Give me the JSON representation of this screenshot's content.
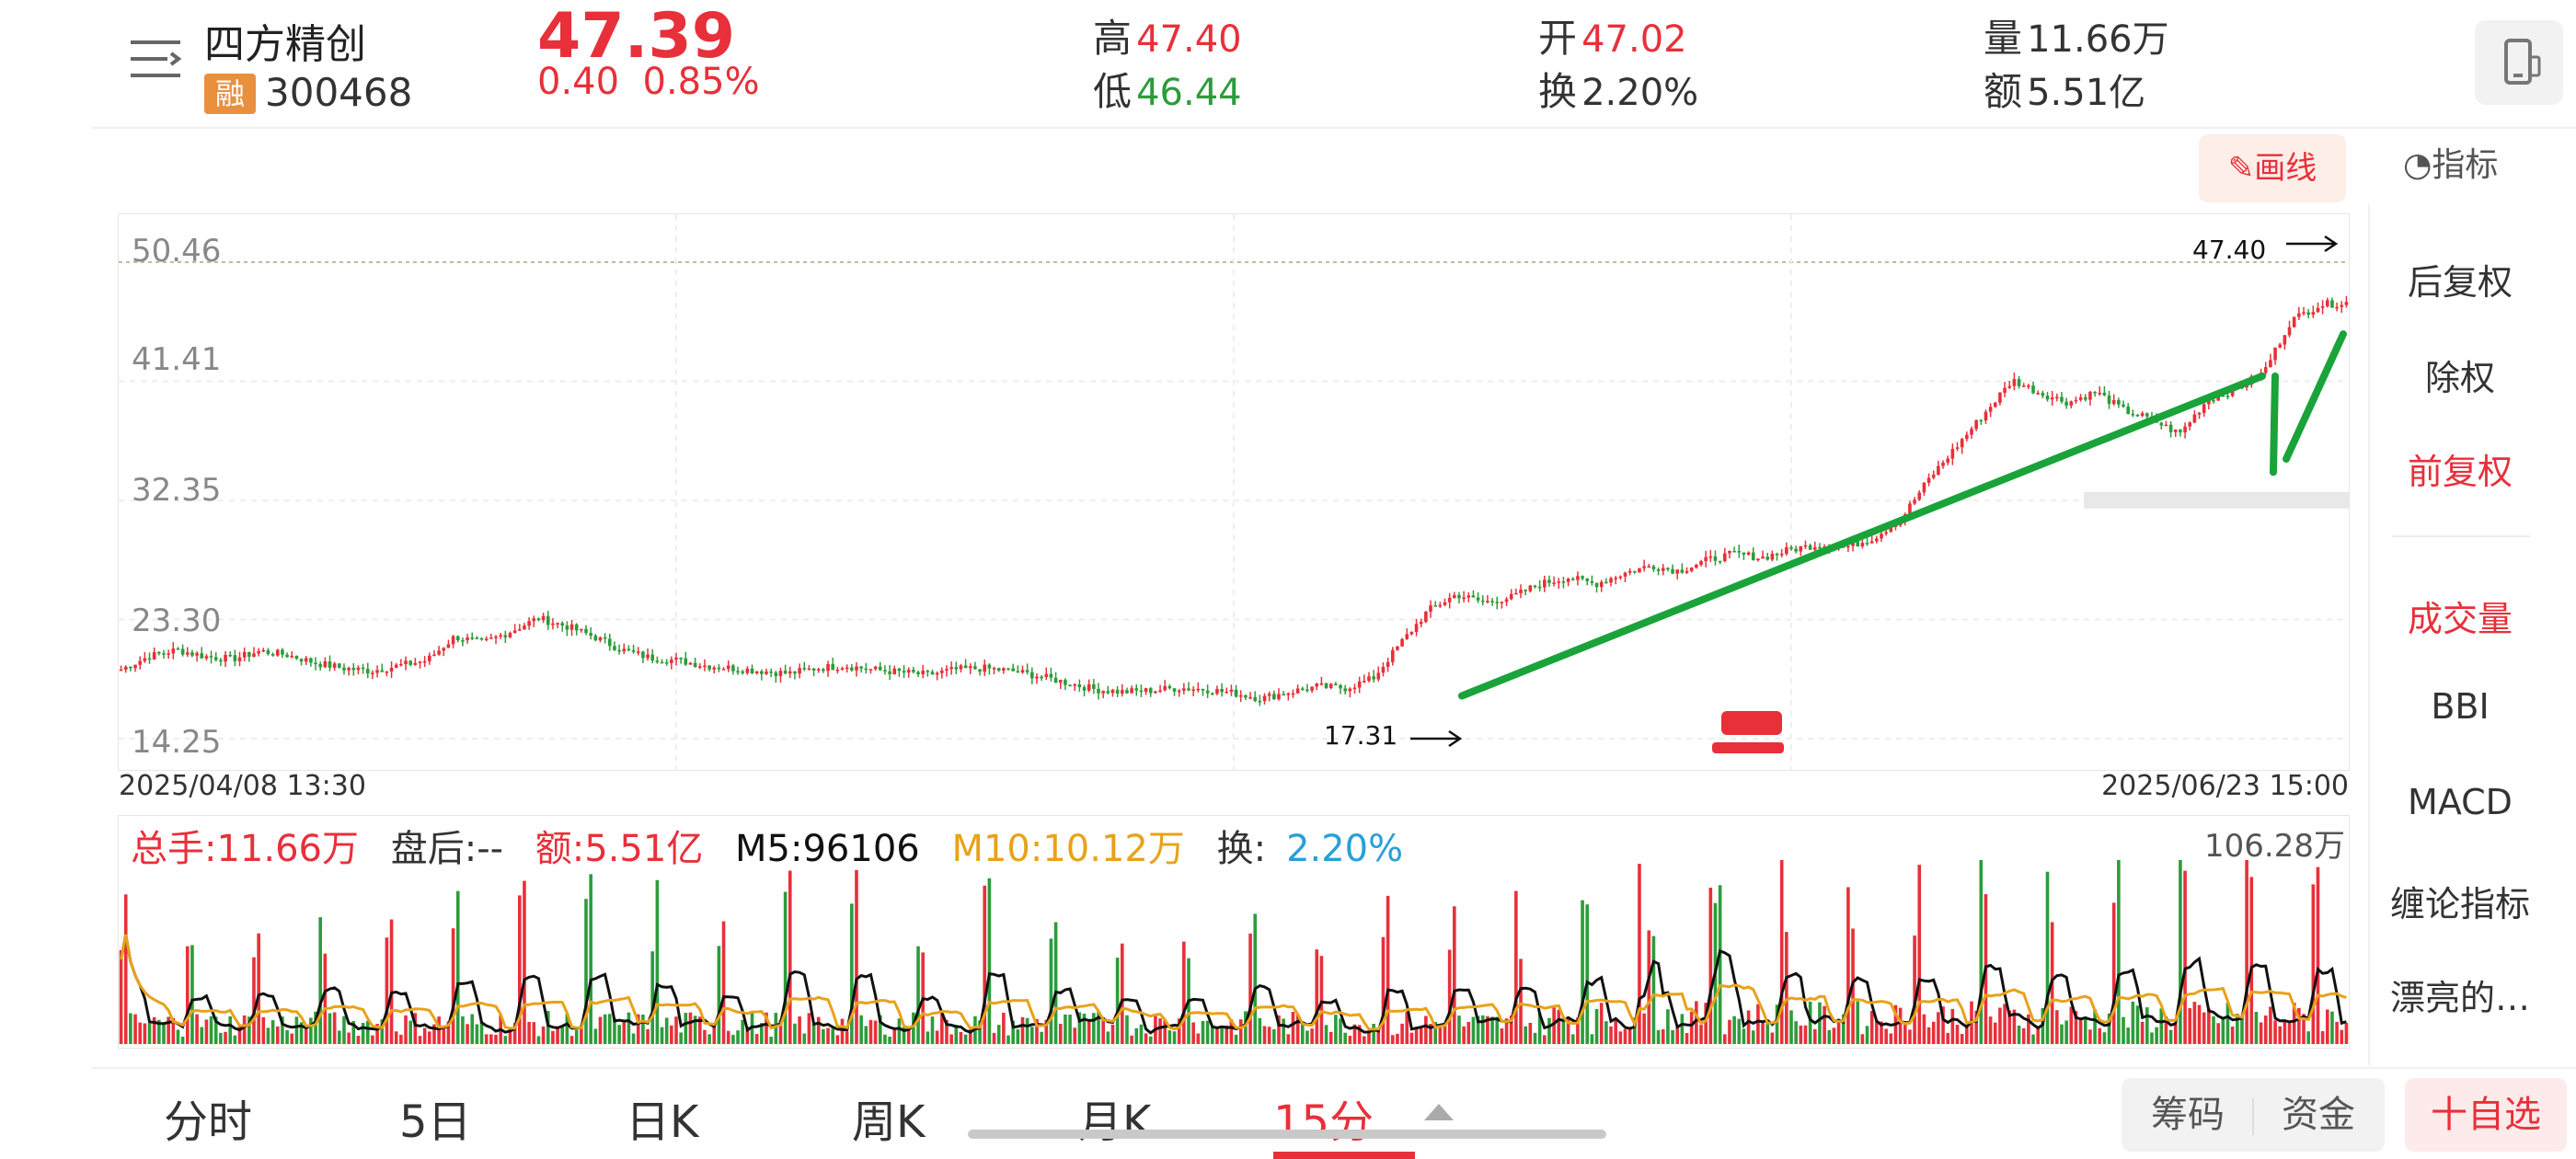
{
  "header": {
    "stock_name": "四方精创",
    "margin_badge": "融",
    "stock_code": "300468",
    "price": "47.39",
    "change": "0.40",
    "change_pct": "0.85%",
    "high_label": "高",
    "high_value": "47.40",
    "low_label": "低",
    "low_value": "46.44",
    "open_label": "开",
    "open_value": "47.02",
    "turnover_label": "换",
    "turnover_value": "2.20%",
    "volume_label": "量",
    "volume_value": "11.66万",
    "amount_label": "额",
    "amount_value": "5.51亿"
  },
  "toolbar": {
    "draw_label": "画线",
    "indicator_label": "指标"
  },
  "chart": {
    "y_ticks": [
      "50.46",
      "41.41",
      "32.35",
      "23.30",
      "14.25"
    ],
    "start_date": "2025/04/08 13:30",
    "end_date": "2025/06/23 15:00",
    "high_marker": "47.40",
    "low_marker": "17.31"
  },
  "chart_data": {
    "type": "candlestick",
    "period": "15分",
    "ylim": [
      14.25,
      50.46
    ],
    "y_ticks": [
      50.46,
      41.41,
      32.35,
      23.3,
      14.25
    ],
    "x_start": "2025/04/08 13:30",
    "x_end": "2025/06/23 15:00",
    "annotations": [
      {
        "label": "47.40",
        "type": "high"
      },
      {
        "label": "17.31",
        "type": "low"
      }
    ],
    "price_path": [
      19.5,
      20.5,
      21.0,
      20.5,
      20.3,
      20.9,
      20.6,
      20.0,
      19.6,
      19.4,
      19.8,
      20.2,
      22.0,
      21.5,
      22.4,
      23.4,
      22.8,
      22.0,
      21.0,
      20.4,
      20.2,
      19.8,
      19.6,
      19.4,
      19.2,
      19.6,
      19.8,
      19.5,
      19.3,
      19.1,
      19.5,
      19.6,
      19.4,
      19.0,
      18.5,
      18.0,
      17.8,
      17.9,
      18.1,
      18.0,
      17.7,
      17.31,
      17.8,
      18.2,
      18.1,
      18.8,
      21.5,
      24.0,
      25.2,
      24.6,
      25.0,
      26.0,
      26.5,
      26.0,
      26.8,
      27.4,
      27.0,
      27.8,
      28.3,
      28.0,
      28.6,
      29.0,
      28.8,
      29.5,
      31.0,
      34.0,
      36.5,
      39.0,
      41.5,
      40.5,
      39.8,
      40.6,
      39.2,
      38.5,
      37.4,
      40.0,
      40.8,
      42.0,
      46.0,
      47.2,
      47.4
    ],
    "volume_max_label": "106.28万",
    "drawn_lines": [
      {
        "from": "low 17.31",
        "to": "peak ~41.8",
        "color": "#1aa33a"
      },
      {
        "from": "peak ~41.8",
        "to": "pullback ~34.5",
        "color": "#1aa33a"
      },
      {
        "from": "pullback ~34.5",
        "to": "~45.0",
        "color": "#1aa33a"
      }
    ]
  },
  "volume": {
    "total_label": "总手:11.66万",
    "after_hours_label": "盘后:--",
    "amount_label": "额:5.51亿",
    "m5_label": "M5:96106",
    "m10_label": "M10:10.12万",
    "turnover_prefix": "换:",
    "turnover_value": "2.20%",
    "max_label": "106.28万"
  },
  "sidebar": {
    "items": [
      "后复权",
      "除权",
      "前复权",
      "成交量",
      "BBI",
      "MACD",
      "缠论指标",
      "漂亮的…"
    ]
  },
  "tabs": {
    "items": [
      "分时",
      "5日",
      "日K",
      "周K",
      "月K",
      "15分"
    ],
    "active": "15分"
  },
  "bottom_buttons": {
    "chips": "筹码",
    "funds": "资金",
    "add_watch": "十自选"
  },
  "colors": {
    "up": "#e8303a",
    "down": "#2c9c3a",
    "trendline": "#1aa33a",
    "m5": "#111111",
    "m10": "#e8a21a",
    "turnover": "#2a9fd8"
  }
}
